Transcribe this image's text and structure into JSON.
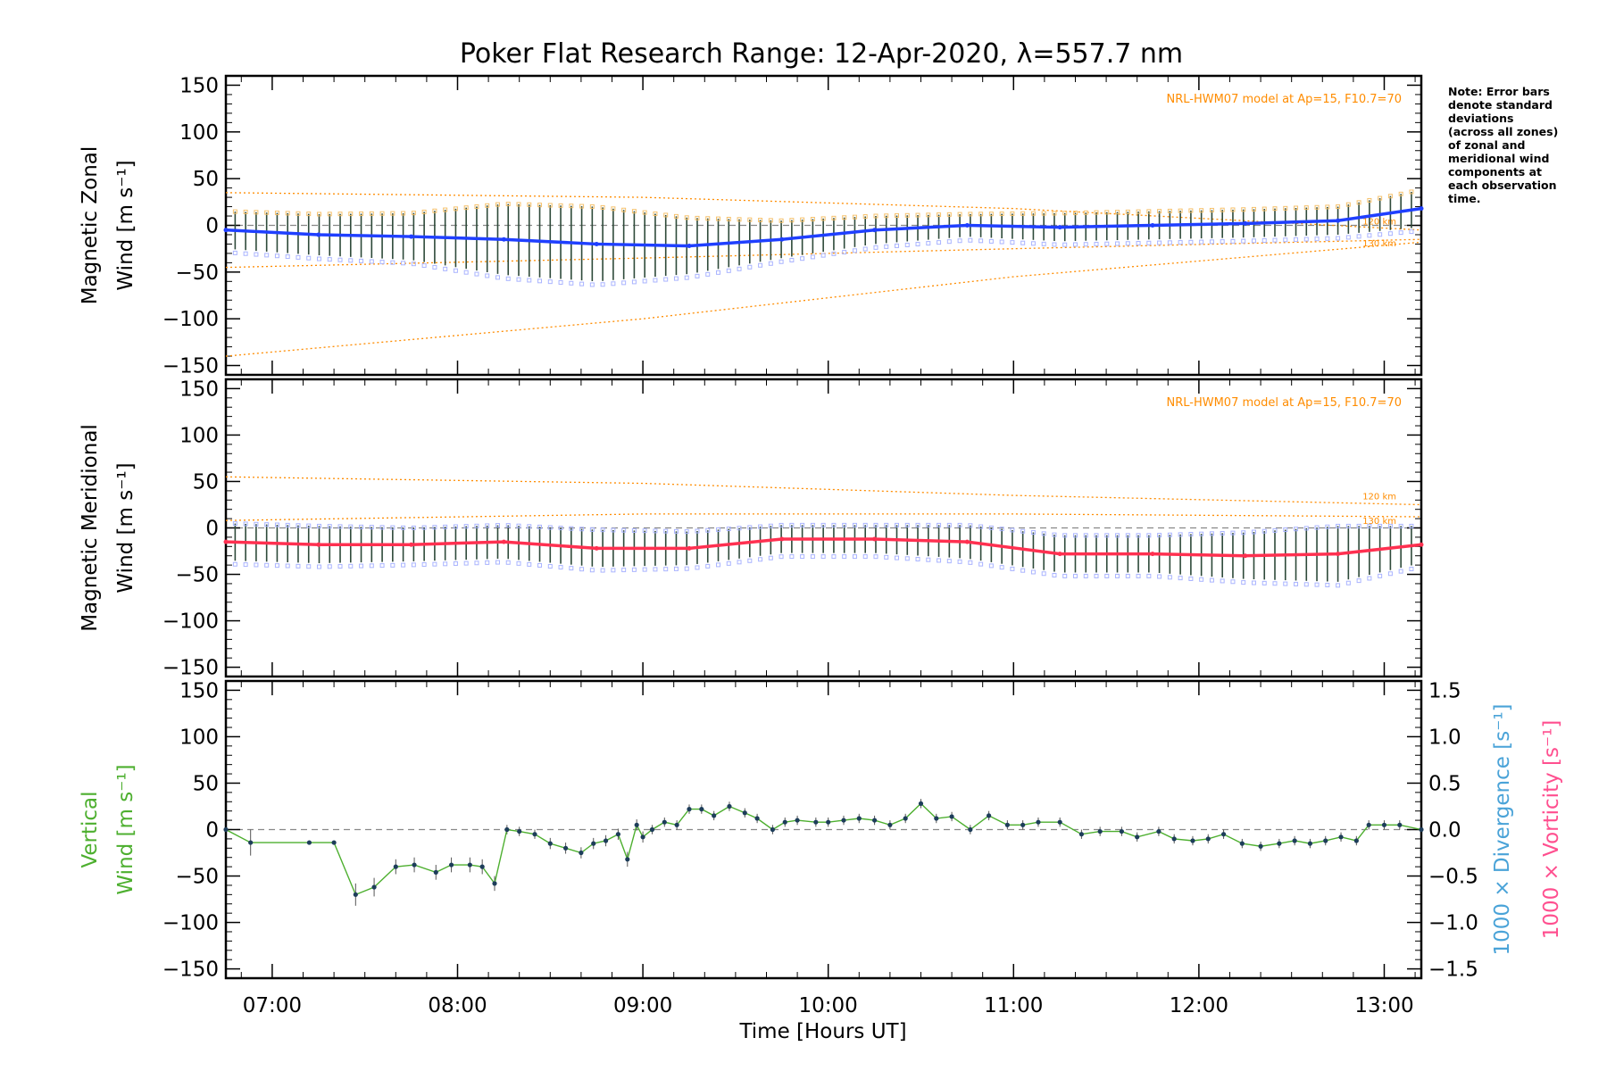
{
  "chart_data": {
    "title": "Poker Flat Research Range: 12-Apr-2020, λ=557.7 nm",
    "type": "line",
    "xlabel": "Time [Hours UT]",
    "x_range": [
      "06:45",
      "13:12"
    ],
    "x_ticks": [
      "07:00",
      "08:00",
      "09:00",
      "10:00",
      "11:00",
      "12:00",
      "13:00"
    ],
    "note": [
      "Note: Error bars",
      "denote standard",
      "deviations",
      "(across all zones)",
      "of zonal and",
      "meridional wind",
      "components at",
      "each observation",
      "time."
    ],
    "panels": [
      {
        "name": "zonal",
        "ylabel_line1": "Magnetic Zonal",
        "ylabel_line2": "Wind [m s⁻¹]",
        "ylim": [
          -160,
          160
        ],
        "yticks": [
          "150",
          "100",
          "50",
          "0",
          "−50",
          "−100",
          "−150"
        ],
        "model_label": "NRL-HWM07 model at Ap=15, F10.7=70",
        "alt_labels": [
          "120 km",
          "130 km"
        ],
        "series_color": "#1f3fff",
        "series": {
          "x": [
            "06:45",
            "07:15",
            "07:45",
            "08:15",
            "08:45",
            "09:15",
            "09:45",
            "10:15",
            "10:45",
            "11:15",
            "11:45",
            "12:15",
            "12:45",
            "13:12"
          ],
          "values": [
            -5,
            -10,
            -12,
            -15,
            -20,
            -22,
            -15,
            -5,
            0,
            -2,
            0,
            2,
            5,
            18
          ],
          "error": [
            20,
            22,
            25,
            38,
            40,
            30,
            20,
            15,
            12,
            15,
            15,
            15,
            15,
            20
          ]
        },
        "model": {
          "120_km": {
            "x": [
              "06:45",
              "09:00",
              "11:00",
              "13:12"
            ],
            "values": [
              35,
              30,
              18,
              -5
            ]
          },
          "130_km": {
            "x": [
              "06:45",
              "09:00",
              "11:00",
              "13:12"
            ],
            "values": [
              -45,
              -35,
              -25,
              -15
            ]
          },
          "lower": {
            "x": [
              "06:45",
              "09:00",
              "11:00",
              "13:12"
            ],
            "values": [
              -140,
              -100,
              -55,
              -18
            ]
          }
        }
      },
      {
        "name": "meridional",
        "ylabel_line1": "Magnetic Meridional",
        "ylabel_line2": "Wind [m s⁻¹]",
        "ylim": [
          -160,
          160
        ],
        "yticks": [
          "150",
          "100",
          "50",
          "0",
          "−50",
          "−100",
          "−150"
        ],
        "model_label": "NRL-HWM07 model at Ap=15, F10.7=70",
        "alt_labels": [
          "120 km",
          "130 km"
        ],
        "series_color": "#ff3050",
        "series": {
          "x": [
            "06:45",
            "07:15",
            "07:45",
            "08:15",
            "08:45",
            "09:15",
            "09:45",
            "10:15",
            "10:45",
            "11:15",
            "11:45",
            "12:15",
            "12:45",
            "13:12"
          ],
          "values": [
            -15,
            -18,
            -18,
            -15,
            -22,
            -22,
            -12,
            -12,
            -15,
            -28,
            -28,
            -30,
            -28,
            -18
          ],
          "error": [
            20,
            20,
            18,
            18,
            20,
            18,
            15,
            15,
            18,
            20,
            20,
            25,
            30,
            20
          ]
        },
        "model": {
          "120_km": {
            "x": [
              "06:45",
              "09:00",
              "11:00",
              "13:12"
            ],
            "values": [
              55,
              48,
              35,
              25
            ]
          },
          "130_km": {
            "x": [
              "06:45",
              "09:00",
              "11:00",
              "13:12"
            ],
            "values": [
              8,
              15,
              15,
              12
            ]
          }
        }
      },
      {
        "name": "vertical",
        "ylabel_line1": "Vertical",
        "ylabel_line2": "Wind [m s⁻¹]",
        "ylabel_color": "#4daf2f",
        "ylim": [
          -160,
          160
        ],
        "yticks": [
          "150",
          "100",
          "50",
          "0",
          "−50",
          "−100",
          "−150"
        ],
        "right_ylim": [
          -1.6,
          1.6
        ],
        "right_yticks": [
          "1.5",
          "1.0",
          "0.5",
          "0.0",
          "−0.5",
          "−1.0",
          "−1.5"
        ],
        "right_label_1": "1000 × Divergence [s⁻¹]",
        "right_label_1_color": "#4aa3d8",
        "right_label_2": "1000 × Vorticity [s⁻¹]",
        "right_label_2_color": "#ff4f8f",
        "series_color": "#4daf2f",
        "series": {
          "x": [
            "06:45",
            "06:53",
            "07:12",
            "07:20",
            "07:27",
            "07:33",
            "07:40",
            "07:46",
            "07:53",
            "07:58",
            "08:04",
            "08:08",
            "08:12",
            "08:16",
            "08:20",
            "08:25",
            "08:30",
            "08:35",
            "08:40",
            "08:44",
            "08:48",
            "08:52",
            "08:55",
            "08:58",
            "09:00",
            "09:03",
            "09:07",
            "09:11",
            "09:15",
            "09:19",
            "09:23",
            "09:28",
            "09:33",
            "09:37",
            "09:42",
            "09:46",
            "09:50",
            "09:56",
            "10:00",
            "10:05",
            "10:10",
            "10:15",
            "10:20",
            "10:25",
            "10:30",
            "10:35",
            "10:40",
            "10:46",
            "10:52",
            "10:58",
            "11:03",
            "11:08",
            "11:15",
            "11:22",
            "11:28",
            "11:35",
            "11:40",
            "11:47",
            "11:52",
            "11:58",
            "12:03",
            "12:08",
            "12:14",
            "12:20",
            "12:26",
            "12:31",
            "12:36",
            "12:41",
            "12:46",
            "12:51",
            "12:55",
            "13:00",
            "13:05",
            "13:12"
          ],
          "values": [
            0,
            -14,
            -14,
            -14,
            -70,
            -62,
            -40,
            -38,
            -46,
            -38,
            -38,
            -40,
            -58,
            0,
            -2,
            -5,
            -15,
            -20,
            -25,
            -15,
            -12,
            -5,
            -32,
            5,
            -8,
            0,
            8,
            5,
            22,
            22,
            15,
            25,
            18,
            12,
            0,
            8,
            10,
            8,
            8,
            10,
            12,
            10,
            5,
            12,
            28,
            12,
            14,
            0,
            15,
            5,
            5,
            8,
            8,
            -5,
            -2,
            -2,
            -8,
            -2,
            -10,
            -12,
            -10,
            -5,
            -15,
            -18,
            -15,
            -12,
            -15,
            -12,
            -8,
            -12,
            5,
            5,
            5,
            0
          ],
          "error": [
            0,
            14,
            0,
            0,
            12,
            10,
            8,
            8,
            8,
            8,
            8,
            8,
            8,
            5,
            5,
            5,
            6,
            6,
            6,
            6,
            6,
            6,
            8,
            6,
            6,
            5,
            5,
            5,
            5,
            5,
            5,
            5,
            5,
            5,
            5,
            5,
            5,
            5,
            5,
            5,
            5,
            5,
            5,
            5,
            5,
            5,
            5,
            5,
            5,
            5,
            5,
            5,
            5,
            5,
            5,
            5,
            5,
            5,
            5,
            5,
            5,
            5,
            5,
            5,
            5,
            5,
            5,
            5,
            5,
            5,
            5,
            5,
            5,
            0
          ]
        }
      }
    ]
  }
}
